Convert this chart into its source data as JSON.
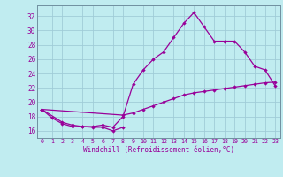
{
  "bg_color": "#c0ecf0",
  "grid_color": "#a0ccd8",
  "line_color": "#990099",
  "xlabel": "Windchill (Refroidissement éolien,°C)",
  "xlim": [
    -0.5,
    23.5
  ],
  "ylim": [
    15.0,
    33.5
  ],
  "xticks": [
    0,
    1,
    2,
    3,
    4,
    5,
    6,
    7,
    8,
    9,
    10,
    11,
    12,
    13,
    14,
    15,
    16,
    17,
    18,
    19,
    20,
    21,
    22,
    23
  ],
  "yticks": [
    16,
    18,
    20,
    22,
    24,
    26,
    28,
    30,
    32
  ],
  "line1_x": [
    0,
    1,
    2,
    3,
    4,
    5,
    6,
    7,
    8
  ],
  "line1_y": [
    19.0,
    17.8,
    17.0,
    16.6,
    16.6,
    16.5,
    16.5,
    16.0,
    16.5
  ],
  "line2_x": [
    0,
    2,
    3,
    4,
    5,
    6,
    7,
    8,
    9,
    10,
    11,
    12,
    13,
    14,
    15,
    16,
    17,
    18,
    19,
    20,
    21,
    22,
    23
  ],
  "line2_y": [
    19.0,
    17.2,
    16.8,
    16.6,
    16.6,
    16.8,
    16.5,
    18.0,
    22.5,
    24.5,
    26.0,
    27.0,
    29.0,
    31.0,
    32.5,
    30.5,
    28.5,
    28.5,
    28.5,
    27.0,
    25.0,
    24.5,
    22.3
  ],
  "line3_x": [
    0,
    8,
    9,
    10,
    11,
    12,
    13,
    14,
    15,
    16,
    17,
    18,
    19,
    20,
    21,
    22,
    23
  ],
  "line3_y": [
    19.0,
    18.2,
    18.5,
    19.0,
    19.5,
    20.0,
    20.5,
    21.0,
    21.3,
    21.5,
    21.7,
    21.9,
    22.1,
    22.3,
    22.5,
    22.7,
    22.8
  ]
}
